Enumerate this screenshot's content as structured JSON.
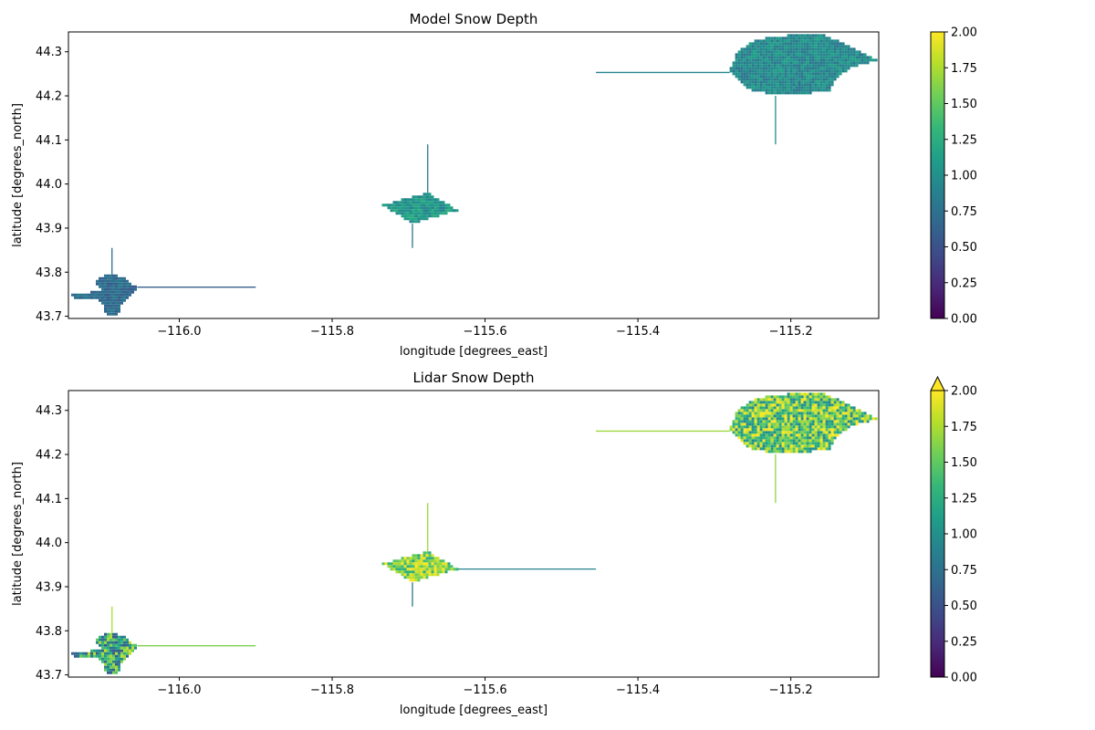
{
  "chart_data": [
    {
      "type": "heatmap",
      "title": "Model Snow Depth",
      "xlabel": "longitude [degrees_east]",
      "ylabel": "latitude [degrees_north]",
      "xlim": [
        -116.145,
        -115.085
      ],
      "ylim": [
        43.695,
        44.345
      ],
      "xticks": [
        -116.0,
        -115.8,
        -115.6,
        -115.4,
        -115.2
      ],
      "xtick_labels": [
        "−116.0",
        "−115.8",
        "−115.6",
        "−115.4",
        "−115.2"
      ],
      "yticks": [
        43.7,
        43.8,
        43.9,
        44.0,
        44.1,
        44.2,
        44.3
      ],
      "ytick_labels": [
        "43.7",
        "43.8",
        "43.9",
        "44.0",
        "44.1",
        "44.2",
        "44.3"
      ],
      "colormap": "viridis",
      "colorbar": {
        "vmin": 0.0,
        "vmax": 2.0,
        "extend": "neither",
        "ticks": [
          0.0,
          0.25,
          0.5,
          0.75,
          1.0,
          1.25,
          1.5,
          1.75,
          2.0
        ],
        "tick_labels": [
          "0.00",
          "0.25",
          "0.50",
          "0.75",
          "1.00",
          "1.25",
          "1.50",
          "1.75",
          "2.00"
        ]
      },
      "regions": [
        {
          "center": [
            -116.09,
            43.76
          ],
          "mean_depth": 0.7,
          "variability": 0.15,
          "outline": [
            [
              -116.145,
              43.745
            ],
            [
              -116.13,
              43.74
            ],
            [
              -116.11,
              43.74
            ],
            [
              -116.1,
              43.725
            ],
            [
              -116.095,
              43.7
            ],
            [
              -116.08,
              43.705
            ],
            [
              -116.075,
              43.725
            ],
            [
              -116.065,
              43.745
            ],
            [
              -116.055,
              43.765
            ],
            [
              -116.07,
              43.785
            ],
            [
              -116.085,
              43.795
            ],
            [
              -116.105,
              43.79
            ],
            [
              -116.11,
              43.775
            ],
            [
              -116.1,
              43.76
            ],
            [
              -116.115,
              43.755
            ],
            [
              -116.14,
              43.75
            ]
          ],
          "lines": [
            {
              "from": [
                -116.055,
                43.766
              ],
              "to": [
                -115.9,
                43.766
              ],
              "value": 0.6
            },
            {
              "from": [
                -116.088,
                43.795
              ],
              "to": [
                -116.088,
                43.855
              ],
              "value": 0.7
            }
          ]
        },
        {
          "center": [
            -115.69,
            43.945
          ],
          "mean_depth": 1.05,
          "variability": 0.2,
          "outline": [
            [
              -115.735,
              43.952
            ],
            [
              -115.675,
              43.98
            ],
            [
              -115.635,
              43.94
            ],
            [
              -115.695,
              43.91
            ]
          ],
          "lines": [
            {
              "from": [
                -115.675,
                43.98
              ],
              "to": [
                -115.675,
                44.09
              ],
              "value": 0.8
            },
            {
              "from": [
                -115.695,
                43.91
              ],
              "to": [
                -115.695,
                43.855
              ],
              "value": 0.8
            }
          ]
        },
        {
          "center": [
            -115.19,
            44.27
          ],
          "mean_depth": 0.95,
          "variability": 0.2,
          "outline": [
            [
              -115.28,
              44.255
            ],
            [
              -115.27,
              44.3
            ],
            [
              -115.245,
              44.328
            ],
            [
              -115.2,
              44.338
            ],
            [
              -115.16,
              44.34
            ],
            [
              -115.125,
              44.315
            ],
            [
              -115.085,
              44.28
            ],
            [
              -115.12,
              44.265
            ],
            [
              -115.14,
              44.24
            ],
            [
              -115.15,
              44.21
            ],
            [
              -115.18,
              44.205
            ],
            [
              -115.22,
              44.2
            ],
            [
              -115.255,
              44.215
            ]
          ],
          "lines": [
            {
              "from": [
                -115.455,
                44.253
              ],
              "to": [
                -115.28,
                44.253
              ],
              "value": 0.9
            },
            {
              "from": [
                -115.22,
                44.2
              ],
              "to": [
                -115.22,
                44.09
              ],
              "value": 0.95
            }
          ]
        }
      ]
    },
    {
      "type": "heatmap",
      "title": "Lidar Snow Depth",
      "xlabel": "longitude [degrees_east]",
      "ylabel": "latitude [degrees_north]",
      "xlim": [
        -116.145,
        -115.085
      ],
      "ylim": [
        43.695,
        44.345
      ],
      "xticks": [
        -116.0,
        -115.8,
        -115.6,
        -115.4,
        -115.2
      ],
      "xtick_labels": [
        "−116.0",
        "−115.8",
        "−115.6",
        "−115.4",
        "−115.2"
      ],
      "yticks": [
        43.7,
        43.8,
        43.9,
        44.0,
        44.1,
        44.2,
        44.3
      ],
      "ytick_labels": [
        "43.7",
        "43.8",
        "43.9",
        "44.0",
        "44.1",
        "44.2",
        "44.3"
      ],
      "colormap": "viridis",
      "colorbar": {
        "vmin": 0.0,
        "vmax": 2.0,
        "extend": "max",
        "ticks": [
          0.0,
          0.25,
          0.5,
          0.75,
          1.0,
          1.25,
          1.5,
          1.75,
          2.0
        ],
        "tick_labels": [
          "0.00",
          "0.25",
          "0.50",
          "0.75",
          "1.00",
          "1.25",
          "1.50",
          "1.75",
          "2.00"
        ]
      },
      "regions": [
        {
          "center": [
            -116.09,
            43.76
          ],
          "mean_depth": 1.2,
          "variability": 0.65,
          "outline": [
            [
              -116.145,
              43.745
            ],
            [
              -116.13,
              43.74
            ],
            [
              -116.11,
              43.74
            ],
            [
              -116.1,
              43.725
            ],
            [
              -116.095,
              43.7
            ],
            [
              -116.08,
              43.705
            ],
            [
              -116.075,
              43.725
            ],
            [
              -116.065,
              43.745
            ],
            [
              -116.055,
              43.765
            ],
            [
              -116.07,
              43.785
            ],
            [
              -116.085,
              43.795
            ],
            [
              -116.105,
              43.79
            ],
            [
              -116.11,
              43.775
            ],
            [
              -116.1,
              43.76
            ],
            [
              -116.115,
              43.755
            ],
            [
              -116.14,
              43.75
            ]
          ],
          "lines": [
            {
              "from": [
                -116.055,
                43.766
              ],
              "to": [
                -115.9,
                43.766
              ],
              "value": 1.6
            },
            {
              "from": [
                -116.088,
                43.795
              ],
              "to": [
                -116.088,
                43.855
              ],
              "value": 1.75
            }
          ]
        },
        {
          "center": [
            -115.69,
            43.945
          ],
          "mean_depth": 1.65,
          "variability": 0.45,
          "outline": [
            [
              -115.735,
              43.952
            ],
            [
              -115.675,
              43.98
            ],
            [
              -115.635,
              43.94
            ],
            [
              -115.695,
              43.91
            ]
          ],
          "lines": [
            {
              "from": [
                -115.675,
                43.98
              ],
              "to": [
                -115.675,
                44.09
              ],
              "value": 1.7
            },
            {
              "from": [
                -115.695,
                43.91
              ],
              "to": [
                -115.695,
                43.855
              ],
              "value": 0.8
            },
            {
              "from": [
                -115.635,
                43.94
              ],
              "to": [
                -115.455,
                43.94
              ],
              "value": 0.9
            }
          ]
        },
        {
          "center": [
            -115.19,
            44.27
          ],
          "mean_depth": 1.5,
          "variability": 0.6,
          "outline": [
            [
              -115.28,
              44.255
            ],
            [
              -115.27,
              44.3
            ],
            [
              -115.245,
              44.328
            ],
            [
              -115.2,
              44.338
            ],
            [
              -115.16,
              44.34
            ],
            [
              -115.125,
              44.315
            ],
            [
              -115.085,
              44.28
            ],
            [
              -115.12,
              44.265
            ],
            [
              -115.14,
              44.24
            ],
            [
              -115.15,
              44.21
            ],
            [
              -115.18,
              44.205
            ],
            [
              -115.22,
              44.2
            ],
            [
              -115.255,
              44.215
            ]
          ],
          "lines": [
            {
              "from": [
                -115.455,
                44.253
              ],
              "to": [
                -115.28,
                44.253
              ],
              "value": 1.7
            },
            {
              "from": [
                -115.22,
                44.2
              ],
              "to": [
                -115.22,
                44.09
              ],
              "value": 1.65
            }
          ]
        }
      ]
    }
  ]
}
